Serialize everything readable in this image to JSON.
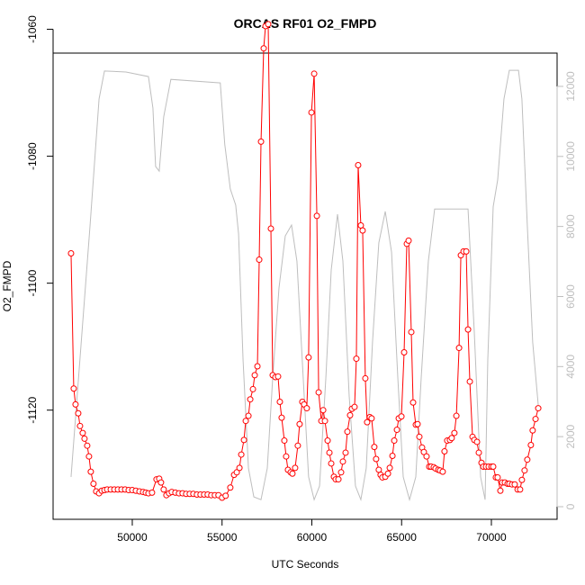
{
  "chart_data": {
    "type": "line",
    "title": "ORCAS RF01 O2_FMPD",
    "x_label": "UTC Seconds",
    "y_label": "O2_FMPD",
    "xlim": [
      45590,
      73660
    ],
    "ylim": [
      -1137.2,
      -1063.75
    ],
    "y2lim": [
      -360,
      12950
    ],
    "xticks": [
      50000,
      55000,
      60000,
      65000,
      70000
    ],
    "yticks": [
      -1120,
      -1100,
      -1080,
      -1060
    ],
    "y2ticks": [
      0,
      2000,
      4000,
      6000,
      8000,
      10000,
      12000
    ],
    "grid": false,
    "series": [
      {
        "color": "#bebebe",
        "axis": "y2",
        "markers": false,
        "x": [
          46590,
          47650,
          48150,
          48450,
          49650,
          50900,
          51150,
          51300,
          51500,
          51750,
          52150,
          54900,
          55150,
          55460,
          55760,
          55920,
          56170,
          56470,
          56770,
          57170,
          57520,
          57820,
          58170,
          58520,
          58870,
          59170,
          59520,
          59820,
          60130,
          60430,
          60780,
          61080,
          61430,
          61730,
          62080,
          62430,
          62730,
          63030,
          63380,
          63730,
          64090,
          64440,
          64790,
          65090,
          65440,
          65790,
          66090,
          66490,
          66840,
          68700,
          69050,
          69400,
          69650,
          69800,
          70100,
          70350,
          70700,
          71000,
          71510,
          71700,
          72000,
          72300,
          72610
        ],
        "values": [
          850,
          8040,
          11640,
          12440,
          12410,
          12280,
          11380,
          9710,
          9580,
          11130,
          12200,
          12100,
          10350,
          9070,
          8610,
          7790,
          4190,
          1100,
          280,
          200,
          1100,
          3670,
          6240,
          7730,
          8040,
          7010,
          3670,
          850,
          200,
          590,
          3670,
          6760,
          8350,
          7010,
          3160,
          590,
          200,
          1100,
          4700,
          7530,
          8430,
          7270,
          3670,
          850,
          200,
          850,
          3670,
          7010,
          8500,
          8500,
          4960,
          850,
          200,
          4200,
          8560,
          9330,
          11640,
          12460,
          12460,
          11640,
          8040,
          4700,
          2900
        ]
      },
      {
        "color": "#ff0000",
        "axis": "y",
        "markers": true,
        "x": [
          46590,
          46740,
          46840,
          46990,
          47090,
          47240,
          47340,
          47490,
          47590,
          47690,
          47840,
          47990,
          48150,
          48300,
          48450,
          48600,
          48800,
          49000,
          49200,
          49400,
          49600,
          49800,
          50000,
          50200,
          50400,
          50600,
          50750,
          50900,
          51100,
          51350,
          51500,
          51600,
          51750,
          51900,
          52050,
          52200,
          52400,
          52600,
          52800,
          53000,
          53200,
          53400,
          53600,
          53800,
          54000,
          54200,
          54400,
          54600,
          54800,
          55000,
          55200,
          55460,
          55670,
          55820,
          55970,
          56070,
          56220,
          56320,
          56470,
          56570,
          56720,
          56820,
          56970,
          57070,
          57170,
          57320,
          57420,
          57570,
          57720,
          57820,
          57970,
          58120,
          58220,
          58320,
          58470,
          58570,
          58670,
          58820,
          58920,
          59070,
          59220,
          59320,
          59470,
          59570,
          59720,
          59820,
          59980,
          60130,
          60280,
          60380,
          60530,
          60630,
          60730,
          60880,
          60980,
          61080,
          61230,
          61330,
          61480,
          61630,
          61730,
          61880,
          61980,
          62130,
          62230,
          62380,
          62480,
          62580,
          62730,
          62830,
          62980,
          63080,
          63230,
          63330,
          63480,
          63580,
          63730,
          63830,
          63930,
          64090,
          64240,
          64340,
          64490,
          64590,
          64740,
          64840,
          64990,
          65140,
          65290,
          65390,
          65540,
          65640,
          65790,
          65890,
          65990,
          66140,
          66240,
          66390,
          66540,
          66640,
          66790,
          66890,
          67040,
          67140,
          67290,
          67390,
          67540,
          67690,
          67790,
          67940,
          68050,
          68200,
          68300,
          68450,
          68600,
          68700,
          68800,
          68950,
          69050,
          69200,
          69300,
          69450,
          69550,
          69700,
          69850,
          70000,
          70100,
          70250,
          70350,
          70500,
          70600,
          70750,
          70900,
          71000,
          71150,
          71300,
          71460,
          71600,
          71700,
          71850,
          72000,
          72200,
          72300,
          72460,
          72610
        ],
        "values": [
          -1095.3,
          -1116.6,
          -1119.1,
          -1120.5,
          -1122.5,
          -1123.6,
          -1124.5,
          -1125.6,
          -1127.3,
          -1129.7,
          -1131.6,
          -1132.8,
          -1133.1,
          -1132.7,
          -1132.6,
          -1132.5,
          -1132.5,
          -1132.5,
          -1132.5,
          -1132.5,
          -1132.5,
          -1132.6,
          -1132.6,
          -1132.7,
          -1132.8,
          -1132.9,
          -1133.0,
          -1133.1,
          -1133.0,
          -1130.9,
          -1130.8,
          -1131.4,
          -1132.5,
          -1133.4,
          -1133.1,
          -1132.9,
          -1133.0,
          -1133.1,
          -1133.1,
          -1133.2,
          -1133.2,
          -1133.2,
          -1133.3,
          -1133.3,
          -1133.3,
          -1133.3,
          -1133.4,
          -1133.4,
          -1133.4,
          -1133.8,
          -1133.5,
          -1132.2,
          -1130.2,
          -1129.8,
          -1129.1,
          -1127.0,
          -1124.7,
          -1121.7,
          -1120.9,
          -1118.3,
          -1116.7,
          -1114.5,
          -1113.1,
          -1096.3,
          -1077.7,
          -1063.0,
          -1059.5,
          -1059.2,
          -1091.4,
          -1114.5,
          -1114.8,
          -1114.7,
          -1118.7,
          -1121.2,
          -1124.8,
          -1127.3,
          -1129.4,
          -1129.8,
          -1130.0,
          -1129.1,
          -1125.6,
          -1122.2,
          -1118.7,
          -1119.1,
          -1119.7,
          -1111.7,
          -1073.1,
          -1067.0,
          -1089.4,
          -1117.2,
          -1121.7,
          -1120.0,
          -1121.7,
          -1124.8,
          -1126.7,
          -1128.4,
          -1130.5,
          -1130.9,
          -1130.9,
          -1129.8,
          -1128.1,
          -1126.7,
          -1123.4,
          -1120.8,
          -1119.8,
          -1119.5,
          -1111.9,
          -1081.4,
          -1090.9,
          -1091.7,
          -1115.0,
          -1121.9,
          -1121.1,
          -1121.3,
          -1125.8,
          -1127.7,
          -1129.4,
          -1130.2,
          -1130.6,
          -1130.5,
          -1130.0,
          -1129.1,
          -1127.2,
          -1124.8,
          -1123.1,
          -1121.3,
          -1121.0,
          -1110.9,
          -1093.8,
          -1093.3,
          -1107.7,
          -1118.8,
          -1122.3,
          -1122.2,
          -1124.2,
          -1125.9,
          -1126.6,
          -1127.3,
          -1128.9,
          -1128.9,
          -1129.0,
          -1129.2,
          -1129.4,
          -1129.5,
          -1129.7,
          -1126.5,
          -1124.8,
          -1124.7,
          -1124.4,
          -1123.6,
          -1120.9,
          -1110.2,
          -1095.6,
          -1095.0,
          -1095.0,
          -1107.3,
          -1115.5,
          -1124.2,
          -1124.7,
          -1125.0,
          -1126.7,
          -1128.3,
          -1128.9,
          -1128.9,
          -1128.9,
          -1128.9,
          -1128.9,
          -1130.6,
          -1130.6,
          -1132.7,
          -1131.4,
          -1131.4,
          -1131.6,
          -1131.6,
          -1131.7,
          -1131.7,
          -1132.5,
          -1132.5,
          -1131.0,
          -1129.5,
          -1127.8,
          -1125.5,
          -1123.2,
          -1121.4,
          -1119.7
        ]
      }
    ]
  }
}
